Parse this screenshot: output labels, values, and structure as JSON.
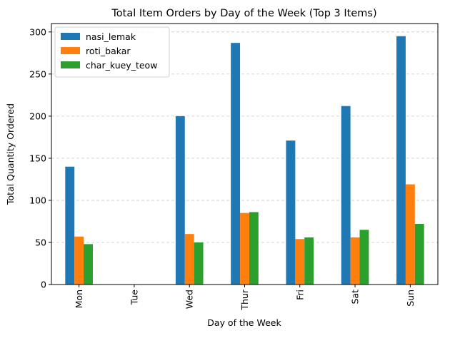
{
  "chart_data": {
    "type": "bar",
    "title": "Total Item Orders by Day of the Week (Top 3 Items)",
    "xlabel": "Day of the Week",
    "ylabel": "Total Quantity Ordered",
    "categories": [
      "Mon",
      "Tue",
      "Wed",
      "Thur",
      "Fri",
      "Sat",
      "Sun"
    ],
    "series": [
      {
        "name": "nasi_lemak",
        "color": "#1f77b4",
        "values": [
          140,
          0,
          200,
          287,
          171,
          212,
          295
        ]
      },
      {
        "name": "roti_bakar",
        "color": "#ff7f0e",
        "values": [
          57,
          0,
          60,
          85,
          54,
          56,
          119
        ]
      },
      {
        "name": "char_kuey_teow",
        "color": "#2ca02c",
        "values": [
          48,
          0,
          50,
          86,
          56,
          65,
          72
        ]
      }
    ],
    "ylim": [
      0,
      310
    ],
    "yticks": [
      0,
      50,
      100,
      150,
      200,
      250,
      300
    ],
    "grid": "y-dashed",
    "legend_position": "top-left"
  }
}
